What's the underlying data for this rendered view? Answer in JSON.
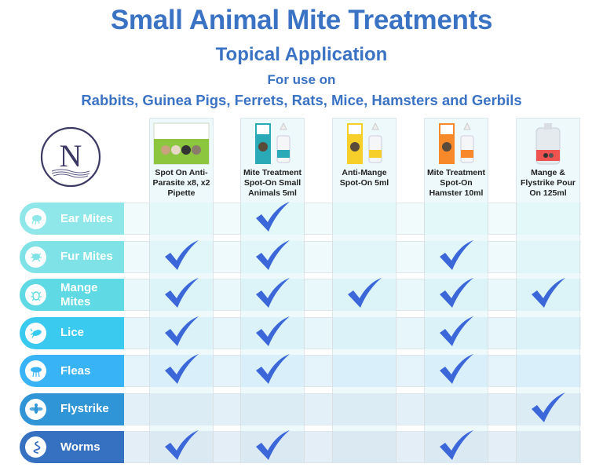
{
  "header": {
    "title": "Small Animal Mite Treatments",
    "subtitle": "Topical Application",
    "for_use_on": "For use on",
    "species": "Rabbits, Guinea Pigs, Ferrets, Rats, Mice, Hamsters and Gerbils"
  },
  "logo": {
    "letter": "N",
    "icon": "brand-logo-icon"
  },
  "colors": {
    "title_blue": "#3a72c4",
    "check_blue": "#3b67d9",
    "logo_navy": "#3c3a64"
  },
  "products": [
    {
      "name_lines": [
        "Spot On Anti-",
        "Parasite x8, x2",
        "Pipette"
      ],
      "image": "green-box-product-image"
    },
    {
      "name_lines": [
        "Mite Treatment",
        "Spot-On Small",
        "Animals 5ml"
      ],
      "image": "teal-box-bottle-image"
    },
    {
      "name_lines": [
        "Anti-Mange",
        "Spot-On 5ml"
      ],
      "image": "yellow-box-bottle-image"
    },
    {
      "name_lines": [
        "Mite Treatment",
        "Spot-On",
        "Hamster 10ml"
      ],
      "image": "orange-box-bottle-image"
    },
    {
      "name_lines": [
        "Mange &",
        "Flystrike Pour",
        "On 125ml"
      ],
      "image": "pour-on-jug-image"
    }
  ],
  "rows": [
    {
      "label_lines": [
        "Ear Mites"
      ],
      "icon": "ear-mite-icon",
      "color": "#8fe7ea",
      "checks": [
        false,
        true,
        false,
        false,
        false
      ]
    },
    {
      "label_lines": [
        "Fur Mites"
      ],
      "icon": "fur-mite-icon",
      "color": "#7fe2e6",
      "checks": [
        true,
        true,
        false,
        true,
        false
      ]
    },
    {
      "label_lines": [
        "Mange",
        "Mites"
      ],
      "icon": "mange-mite-icon",
      "color": "#5fd9e4",
      "checks": [
        true,
        true,
        true,
        true,
        true
      ]
    },
    {
      "label_lines": [
        "Lice"
      ],
      "icon": "louse-icon",
      "color": "#3ac9ef",
      "checks": [
        true,
        true,
        false,
        true,
        false
      ]
    },
    {
      "label_lines": [
        "Fleas"
      ],
      "icon": "flea-icon",
      "color": "#38b3f5",
      "checks": [
        true,
        true,
        false,
        true,
        false
      ]
    },
    {
      "label_lines": [
        "Flystrike"
      ],
      "icon": "fly-icon",
      "color": "#2f95d6",
      "checks": [
        false,
        false,
        false,
        false,
        true
      ]
    },
    {
      "label_lines": [
        "Worms"
      ],
      "icon": "worm-icon",
      "color": "#3570c1",
      "checks": [
        true,
        true,
        false,
        true,
        false
      ]
    }
  ]
}
